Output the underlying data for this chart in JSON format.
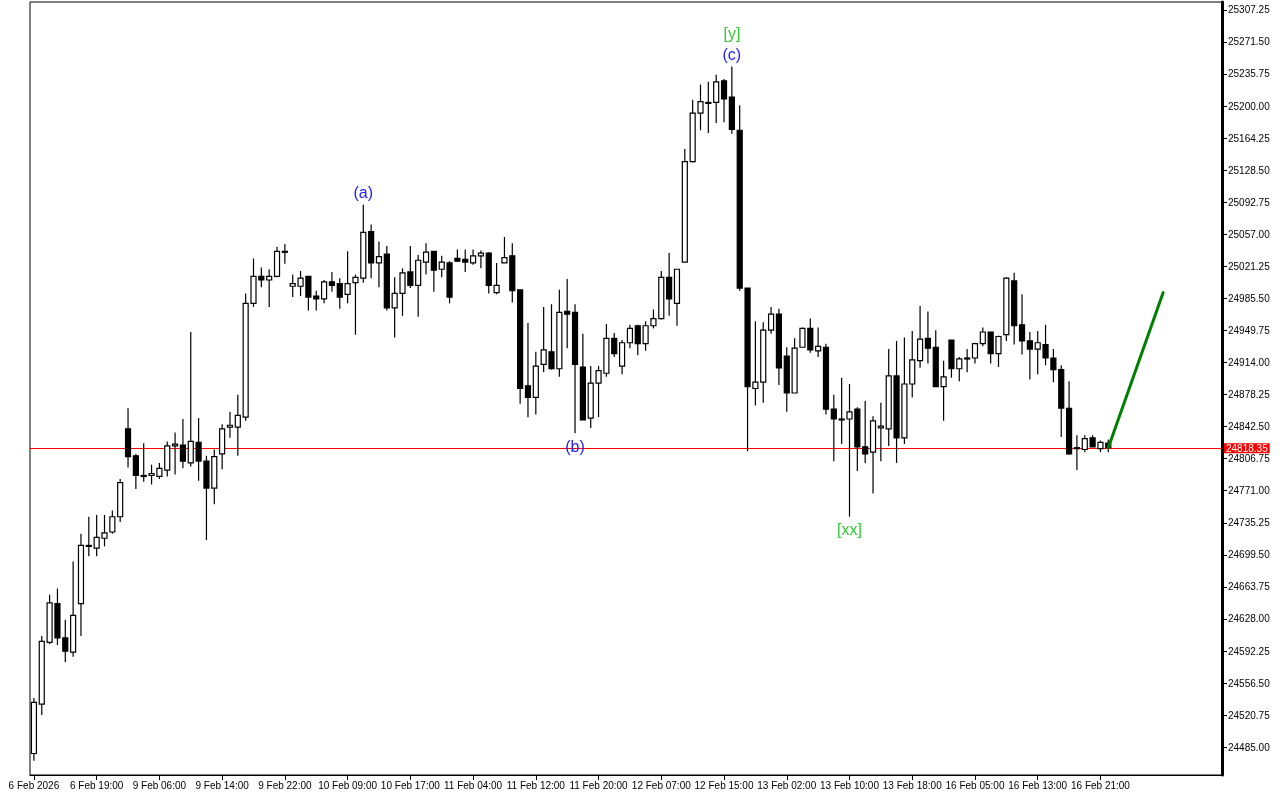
{
  "chart_data": {
    "type": "candlestick",
    "grid": false,
    "categories": [
      "6 Feb 2026",
      null,
      null,
      null,
      null,
      null,
      null,
      null,
      "6 Feb 19:00",
      null,
      null,
      null,
      null,
      null,
      null,
      null,
      "9 Feb 06:00",
      null,
      null,
      null,
      null,
      null,
      null,
      null,
      "9 Feb 14:00",
      null,
      null,
      null,
      null,
      null,
      null,
      null,
      "9 Feb 22:00",
      null,
      null,
      null,
      null,
      null,
      null,
      null,
      "10 Feb 09:00",
      null,
      null,
      null,
      null,
      null,
      null,
      null,
      "10 Feb 17:00",
      null,
      null,
      null,
      null,
      null,
      null,
      null,
      "11 Feb 04:00",
      null,
      null,
      null,
      null,
      null,
      null,
      null,
      "11 Feb 12:00",
      null,
      null,
      null,
      null,
      null,
      null,
      null,
      "11 Feb 20:00",
      null,
      null,
      null,
      null,
      null,
      null,
      null,
      "12 Feb 07:00",
      null,
      null,
      null,
      null,
      null,
      null,
      null,
      "12 Feb 15:00",
      null,
      null,
      null,
      null,
      null,
      null,
      null,
      "13 Feb 02:00",
      null,
      null,
      null,
      null,
      null,
      null,
      null,
      "13 Feb 10:00",
      null,
      null,
      null,
      null,
      null,
      null,
      null,
      "13 Feb 18:00",
      null,
      null,
      null,
      null,
      null,
      null,
      null,
      "16 Feb 05:00",
      null,
      null,
      null,
      null,
      null,
      null,
      null,
      "16 Feb 13:00",
      null,
      null,
      null,
      null,
      null,
      null,
      null,
      "16 Feb 21:00",
      null,
      null,
      null,
      null,
      null,
      null,
      null,
      null,
      null,
      null,
      null,
      null,
      null,
      null,
      null
    ],
    "ohlc": [
      [
        24478,
        24540,
        24470,
        24535
      ],
      [
        24533,
        24609,
        24521,
        24603
      ],
      [
        24602,
        24655,
        24600,
        24646
      ],
      [
        24645,
        24662,
        24599,
        24607
      ],
      [
        24607,
        24627,
        24580,
        24592
      ],
      [
        24591,
        24692,
        24586,
        24632
      ],
      [
        24645,
        24723,
        24609,
        24710
      ],
      [
        24709,
        24742,
        24698,
        24710
      ],
      [
        24707,
        24744,
        24698,
        24719
      ],
      [
        24718,
        24744,
        24709,
        24724
      ],
      [
        24725,
        24749,
        24723,
        24742
      ],
      [
        24742,
        24784,
        24736,
        24780
      ],
      [
        24840,
        24863,
        24797,
        24809
      ],
      [
        24810,
        24812,
        24773,
        24788
      ],
      [
        24788,
        24824,
        24781,
        24787
      ],
      [
        24788,
        24800,
        24778,
        24790
      ],
      [
        24787,
        24802,
        24784,
        24796
      ],
      [
        24794,
        24826,
        24787,
        24821
      ],
      [
        24821,
        24836,
        24789,
        24823
      ],
      [
        24822,
        24851,
        24796,
        24804
      ],
      [
        24802,
        24948,
        24798,
        24826
      ],
      [
        24825,
        24852,
        24782,
        24804
      ],
      [
        24804,
        24810,
        24716,
        24774
      ],
      [
        24774,
        24817,
        24756,
        24809
      ],
      [
        24812,
        24845,
        24795,
        24840
      ],
      [
        24842,
        24859,
        24830,
        24844
      ],
      [
        24842,
        24878,
        24810,
        24855
      ],
      [
        24853,
        24991,
        24849,
        24980
      ],
      [
        24980,
        25030,
        24976,
        25010
      ],
      [
        25010,
        25020,
        24998,
        25006
      ],
      [
        25006,
        25018,
        24976,
        25010
      ],
      [
        25010,
        25043,
        25009,
        25038
      ],
      [
        25038,
        25046,
        25024,
        25037
      ],
      [
        24999,
        25012,
        24987,
        25002
      ],
      [
        24999,
        25016,
        24988,
        25008
      ],
      [
        25010,
        25010,
        24972,
        24987
      ],
      [
        24988,
        24994,
        24972,
        24985
      ],
      [
        24985,
        25006,
        24980,
        25004
      ],
      [
        25004,
        25015,
        24993,
        25000
      ],
      [
        25002,
        25008,
        24974,
        24987
      ],
      [
        24990,
        25038,
        24980,
        25002
      ],
      [
        25003,
        25012,
        24945,
        25009
      ],
      [
        25008,
        25090,
        25003,
        25059
      ],
      [
        25060,
        25068,
        25008,
        25025
      ],
      [
        25025,
        25049,
        24998,
        25032
      ],
      [
        25035,
        25044,
        24972,
        24975
      ],
      [
        24975,
        25009,
        24942,
        24991
      ],
      [
        24991,
        25019,
        24966,
        25014
      ],
      [
        25015,
        25044,
        24997,
        25000
      ],
      [
        25000,
        25034,
        24965,
        25028
      ],
      [
        25026,
        25047,
        25012,
        25037
      ],
      [
        25038,
        25038,
        24993,
        25017
      ],
      [
        25018,
        25033,
        25009,
        25026
      ],
      [
        25025,
        25027,
        24980,
        24987
      ],
      [
        25030,
        25040,
        25026,
        25027
      ],
      [
        25029,
        25040,
        25015,
        25026
      ],
      [
        25025,
        25040,
        25023,
        25033
      ],
      [
        25033,
        25039,
        25019,
        25036
      ],
      [
        25036,
        25037,
        24991,
        25000
      ],
      [
        24992,
        25025,
        24990,
        25000
      ],
      [
        25025,
        25054,
        25025,
        25031
      ],
      [
        25033,
        25047,
        24981,
        24994
      ],
      [
        24995,
        24995,
        24868,
        24885
      ],
      [
        24888,
        24958,
        24853,
        24875
      ],
      [
        24875,
        24926,
        24856,
        24910
      ],
      [
        24912,
        24976,
        24903,
        24928
      ],
      [
        24926,
        24979,
        24906,
        24907
      ],
      [
        24907,
        24995,
        24898,
        24970
      ],
      [
        24971,
        25007,
        24930,
        24968
      ],
      [
        24970,
        24979,
        24835,
        24912
      ],
      [
        24909,
        24946,
        24850,
        24850
      ],
      [
        24852,
        24910,
        24841,
        24891
      ],
      [
        24891,
        24910,
        24853,
        24905
      ],
      [
        24902,
        24957,
        24898,
        24941
      ],
      [
        24941,
        24947,
        24920,
        24924
      ],
      [
        24910,
        24939,
        24901,
        24936
      ],
      [
        24936,
        24956,
        24930,
        24952
      ],
      [
        24955,
        24956,
        24922,
        24935
      ],
      [
        24935,
        24960,
        24927,
        24955
      ],
      [
        24955,
        24973,
        24952,
        24963
      ],
      [
        24963,
        25016,
        24962,
        25009
      ],
      [
        25009,
        25036,
        24966,
        24985
      ],
      [
        24980,
        25018,
        24955,
        25018
      ],
      [
        25026,
        25152,
        25026,
        25138
      ],
      [
        25138,
        25207,
        25137,
        25192
      ],
      [
        25192,
        25224,
        25173,
        25205
      ],
      [
        25203,
        25227,
        25170,
        25204
      ],
      [
        25204,
        25235,
        25181,
        25227
      ],
      [
        25228,
        25230,
        25182,
        25208
      ],
      [
        25210,
        25244,
        25169,
        25174
      ],
      [
        25173,
        25201,
        24994,
        24997
      ],
      [
        24997,
        24997,
        24815,
        24887
      ],
      [
        24885,
        24960,
        24866,
        24892
      ],
      [
        24892,
        24959,
        24869,
        24950
      ],
      [
        24950,
        24976,
        24946,
        24968
      ],
      [
        24968,
        24974,
        24889,
        24908
      ],
      [
        24921,
        24931,
        24859,
        24880
      ],
      [
        24880,
        24941,
        24880,
        24930
      ],
      [
        24931,
        24953,
        24931,
        24952
      ],
      [
        24952,
        24963,
        24925,
        24928
      ],
      [
        24927,
        24953,
        24920,
        24932
      ],
      [
        24931,
        24935,
        24856,
        24862
      ],
      [
        24862,
        24878,
        24804,
        24851
      ],
      [
        24851,
        24897,
        24823,
        24850
      ],
      [
        24851,
        24890,
        24742,
        24859
      ],
      [
        24862,
        24864,
        24793,
        24820
      ],
      [
        24820,
        24871,
        24802,
        24812
      ],
      [
        24814,
        24854,
        24768,
        24849
      ],
      [
        24841,
        24869,
        24804,
        24843
      ],
      [
        24840,
        24929,
        24821,
        24899
      ],
      [
        24899,
        24938,
        24802,
        24830
      ],
      [
        24830,
        24942,
        24823,
        24890
      ],
      [
        24890,
        24949,
        24875,
        24917
      ],
      [
        24916,
        24977,
        24908,
        24940
      ],
      [
        24941,
        24971,
        24913,
        24930
      ],
      [
        24931,
        24950,
        24887,
        24887
      ],
      [
        24887,
        24916,
        24849,
        24898
      ],
      [
        24939,
        24939,
        24897,
        24907
      ],
      [
        24907,
        24920,
        24893,
        24918
      ],
      [
        24918,
        24929,
        24903,
        24919
      ],
      [
        24919,
        24936,
        24913,
        24935
      ],
      [
        24935,
        24953,
        24932,
        24948
      ],
      [
        24948,
        24948,
        24913,
        24924
      ],
      [
        24924,
        24944,
        24909,
        24943
      ],
      [
        24945,
        25009,
        24938,
        25008
      ],
      [
        25005,
        25014,
        24934,
        24955
      ],
      [
        24956,
        24990,
        24923,
        24938
      ],
      [
        24938,
        24948,
        24895,
        24929
      ],
      [
        24929,
        24949,
        24901,
        24936
      ],
      [
        24934,
        24956,
        24911,
        24919
      ],
      [
        24919,
        24929,
        24892,
        24906
      ],
      [
        24906,
        24911,
        24831,
        24863
      ],
      [
        24863,
        24893,
        24811,
        24812
      ],
      [
        24818,
        24833,
        24794,
        24819
      ],
      [
        24817,
        24833,
        24814,
        24829
      ],
      [
        24830,
        24833,
        24820,
        24820
      ],
      [
        24818,
        24827,
        24814,
        24825
      ],
      [
        24824,
        24828,
        24814,
        24819
      ],
      null,
      null,
      null,
      null,
      null,
      null,
      null,
      null,
      null,
      null,
      null,
      null,
      null,
      null
    ],
    "series": [
      {
        "type": "line",
        "color": "#008000",
        "marker": "none",
        "values": [
          null,
          null,
          null,
          null,
          null,
          null,
          null,
          null,
          null,
          null,
          null,
          null,
          null,
          null,
          null,
          null,
          null,
          null,
          null,
          null,
          null,
          null,
          null,
          null,
          null,
          null,
          null,
          null,
          null,
          null,
          null,
          null,
          null,
          null,
          null,
          null,
          null,
          null,
          null,
          null,
          null,
          null,
          null,
          null,
          null,
          null,
          null,
          null,
          null,
          null,
          null,
          null,
          null,
          null,
          null,
          null,
          null,
          null,
          null,
          null,
          null,
          null,
          null,
          null,
          null,
          null,
          null,
          null,
          null,
          null,
          null,
          null,
          null,
          null,
          null,
          null,
          null,
          null,
          null,
          null,
          null,
          null,
          null,
          null,
          null,
          null,
          null,
          null,
          null,
          null,
          null,
          null,
          null,
          null,
          null,
          null,
          null,
          null,
          null,
          null,
          null,
          null,
          null,
          null,
          null,
          null,
          null,
          null,
          null,
          null,
          null,
          null,
          null,
          null,
          null,
          null,
          null,
          null,
          null,
          null,
          null,
          null,
          null,
          null,
          null,
          null,
          null,
          null,
          null,
          null,
          null,
          null,
          null,
          null,
          null,
          null,
          null,
          24819,
          null,
          null,
          null,
          null,
          null,
          null,
          24992,
          null,
          null,
          null,
          null,
          null,
          null,
          null
        ]
      }
    ],
    "ylim": [
      24454,
      25316
    ],
    "yticks": [
      {
        "value": 24485,
        "label": "24485.00"
      },
      {
        "value": 24520.75,
        "label": "24520.75"
      },
      {
        "value": 24556.5,
        "label": "24556.50"
      },
      {
        "value": 24592.25,
        "label": "24592.25"
      },
      {
        "value": 24628,
        "label": "24628.00"
      },
      {
        "value": 24663.75,
        "label": "24663.75"
      },
      {
        "value": 24699.5,
        "label": "24699.50"
      },
      {
        "value": 24735.25,
        "label": "24735.25"
      },
      {
        "value": 24771,
        "label": "24771.00"
      },
      {
        "value": 24806.75,
        "label": "24806.75"
      },
      {
        "value": 24842.5,
        "label": "24842.50"
      },
      {
        "value": 24878.25,
        "label": "24878.25"
      },
      {
        "value": 24914,
        "label": "24914.00"
      },
      {
        "value": 24949.75,
        "label": "24949.75"
      },
      {
        "value": 24985.5,
        "label": "24985.50"
      },
      {
        "value": 25021.25,
        "label": "25021.25"
      },
      {
        "value": 25057,
        "label": "25057.00"
      },
      {
        "value": 25092.75,
        "label": "25092.75"
      },
      {
        "value": 25128.5,
        "label": "25128.50"
      },
      {
        "value": 25164.25,
        "label": "25164.25"
      },
      {
        "value": 25200,
        "label": "25200.00"
      },
      {
        "value": 25235.75,
        "label": "25235.75"
      },
      {
        "value": 25271.5,
        "label": "25271.50"
      },
      {
        "value": 25307.25,
        "label": "25307.25"
      }
    ],
    "ref_lines": [
      {
        "axis": "y",
        "value": 24818.35,
        "label": "24818.35",
        "color": "#ff0000"
      }
    ],
    "annotations": [
      "(a)",
      "(b)",
      "(c)",
      "[y]",
      "[xx]"
    ]
  }
}
